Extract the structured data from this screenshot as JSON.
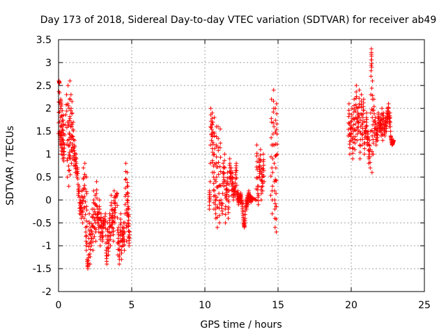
{
  "chart_data": {
    "type": "scatter",
    "title": "Day 173 of 2018, Sidereal Day-to-day VTEC variation (SDTVAR) for receiver ab49",
    "xlabel": "GPS time / hours",
    "ylabel": "SDTVAR / TECUs",
    "xlim": [
      0,
      25
    ],
    "ylim": [
      -2,
      3.5
    ],
    "xticks": [
      0,
      5,
      10,
      15,
      20,
      25
    ],
    "xtick_labels": [
      "0",
      "5",
      "10",
      "15",
      "20",
      "25"
    ],
    "yticks": [
      -2,
      -1.5,
      -1,
      -0.5,
      0,
      0.5,
      1,
      1.5,
      2,
      2.5,
      3,
      3.5
    ],
    "ytick_labels": [
      "-2",
      "-1.5",
      "-1",
      "-0.5",
      "0",
      "0.5",
      "1",
      "1.5",
      "2",
      "2.5",
      "3",
      "3.5"
    ],
    "grid": true,
    "marker": "+",
    "series": [
      {
        "name": "SDTVAR",
        "color": "#ff0000",
        "points": [
          [
            0.0,
            1.45
          ],
          [
            0.03,
            2.6
          ],
          [
            0.06,
            2.55
          ],
          [
            0.08,
            1.5
          ],
          [
            0.1,
            1.4
          ],
          [
            0.12,
            1.2
          ],
          [
            0.15,
            2.2
          ],
          [
            0.18,
            2.05
          ],
          [
            0.2,
            1.0
          ],
          [
            0.22,
            1.35
          ],
          [
            0.25,
            1.95
          ],
          [
            0.28,
            0.9
          ],
          [
            0.3,
            1.3
          ],
          [
            0.33,
            1.85
          ],
          [
            0.36,
            0.85
          ],
          [
            0.4,
            1.2
          ],
          [
            0.55,
            2.3
          ],
          [
            0.6,
            0.5
          ],
          [
            0.65,
            2.5
          ],
          [
            0.7,
            0.3
          ],
          [
            0.72,
            2.0
          ],
          [
            0.75,
            0.65
          ],
          [
            0.78,
            2.6
          ],
          [
            0.8,
            0.55
          ],
          [
            0.85,
            2.3
          ],
          [
            0.88,
            0.8
          ],
          [
            0.92,
            2.15
          ],
          [
            0.95,
            0.9
          ],
          [
            1.0,
            1.7
          ],
          [
            1.05,
            0.75
          ],
          [
            1.1,
            1.3
          ],
          [
            1.15,
            0.6
          ],
          [
            1.2,
            1.0
          ],
          [
            1.25,
            0.5
          ],
          [
            1.3,
            0.7
          ],
          [
            1.35,
            0.1
          ],
          [
            1.4,
            0.3
          ],
          [
            1.45,
            -0.3
          ],
          [
            1.5,
            0.0
          ],
          [
            1.55,
            -0.4
          ],
          [
            1.6,
            0.2
          ],
          [
            1.65,
            -0.5
          ],
          [
            1.7,
            0.7
          ],
          [
            1.75,
            -0.4
          ],
          [
            1.8,
            0.8
          ],
          [
            1.85,
            -0.6
          ],
          [
            1.9,
            -1.1
          ],
          [
            1.92,
            0.5
          ],
          [
            1.95,
            -1.3
          ],
          [
            2.0,
            -1.5
          ],
          [
            2.05,
            -1.2
          ],
          [
            2.1,
            -0.3
          ],
          [
            2.15,
            -1.4
          ],
          [
            2.2,
            -0.6
          ],
          [
            2.25,
            -1.0
          ],
          [
            2.3,
            -0.2
          ],
          [
            2.35,
            -1.1
          ],
          [
            2.4,
            0.2
          ],
          [
            2.45,
            -0.8
          ],
          [
            2.5,
            0.1
          ],
          [
            2.55,
            -0.9
          ],
          [
            2.6,
            0.4
          ],
          [
            2.65,
            -0.5
          ],
          [
            2.7,
            -0.2
          ],
          [
            2.75,
            -0.7
          ],
          [
            2.8,
            0.0
          ],
          [
            2.85,
            -1.0
          ],
          [
            2.9,
            -0.3
          ],
          [
            2.95,
            -0.7
          ],
          [
            3.0,
            -0.9
          ],
          [
            3.05,
            -0.4
          ],
          [
            3.1,
            -0.6
          ],
          [
            3.2,
            -0.3
          ],
          [
            3.25,
            -1.1
          ],
          [
            3.3,
            -1.4
          ],
          [
            3.35,
            -0.5
          ],
          [
            3.4,
            -1.2
          ],
          [
            3.45,
            -0.8
          ],
          [
            3.5,
            -0.3
          ],
          [
            3.55,
            -1.0
          ],
          [
            3.6,
            0.1
          ],
          [
            3.65,
            -0.7
          ],
          [
            3.7,
            -0.2
          ],
          [
            3.75,
            -0.9
          ],
          [
            3.8,
            0.2
          ],
          [
            3.85,
            -0.5
          ],
          [
            3.9,
            0.05
          ],
          [
            4.0,
            0.15
          ],
          [
            4.05,
            -1.2
          ],
          [
            4.1,
            -0.6
          ],
          [
            4.15,
            -1.4
          ],
          [
            4.2,
            -0.9
          ],
          [
            4.25,
            -0.3
          ],
          [
            4.3,
            -1.3
          ],
          [
            4.35,
            -0.6
          ],
          [
            4.4,
            -1.0
          ],
          [
            4.45,
            -0.5
          ],
          [
            4.5,
            -1.1
          ],
          [
            4.55,
            -0.1
          ],
          [
            4.6,
            0.8
          ],
          [
            4.65,
            -0.9
          ],
          [
            4.7,
            0.6
          ],
          [
            4.72,
            -0.5
          ],
          [
            4.75,
            0.3
          ],
          [
            4.78,
            -0.8
          ],
          [
            4.8,
            -0.2
          ],
          [
            4.82,
            -1.0
          ],
          [
            4.85,
            -0.7
          ],
          [
            10.3,
            -0.2
          ],
          [
            10.32,
            0.2
          ],
          [
            10.35,
            0.0
          ],
          [
            10.4,
            2.0
          ],
          [
            10.45,
            1.3
          ],
          [
            10.5,
            1.9
          ],
          [
            10.52,
            0.6
          ],
          [
            10.55,
            1.7
          ],
          [
            10.6,
            0.5
          ],
          [
            10.62,
            -0.2
          ],
          [
            10.65,
            1.8
          ],
          [
            10.7,
            0.1
          ],
          [
            10.75,
            -0.4
          ],
          [
            10.78,
            1.6
          ],
          [
            10.8,
            0.5
          ],
          [
            10.85,
            -0.6
          ],
          [
            10.9,
            1.6
          ],
          [
            10.95,
            0.3
          ],
          [
            11.0,
            -0.5
          ],
          [
            11.05,
            1.55
          ],
          [
            11.1,
            0.0
          ],
          [
            11.2,
            -0.3
          ],
          [
            11.25,
            0.8
          ],
          [
            11.3,
            0.3
          ],
          [
            11.35,
            1.0
          ],
          [
            11.4,
            -0.5
          ],
          [
            11.45,
            0.4
          ],
          [
            11.5,
            0.0
          ],
          [
            11.55,
            0.6
          ],
          [
            11.6,
            -0.4
          ],
          [
            11.65,
            0.2
          ],
          [
            11.7,
            0.9
          ],
          [
            11.75,
            0.4
          ],
          [
            11.8,
            0.7
          ],
          [
            11.85,
            0.1
          ],
          [
            11.9,
            0.6
          ],
          [
            11.95,
            0.0
          ],
          [
            12.0,
            0.3
          ],
          [
            12.05,
            0.1
          ],
          [
            12.1,
            0.55
          ],
          [
            12.15,
            0.8
          ],
          [
            12.2,
            0.0
          ],
          [
            12.25,
            0.2
          ],
          [
            12.3,
            -0.1
          ],
          [
            12.35,
            0.1
          ],
          [
            12.4,
            -0.05
          ],
          [
            12.45,
            0.15
          ],
          [
            12.5,
            0.0
          ],
          [
            12.55,
            -0.1
          ],
          [
            12.6,
            -0.3
          ],
          [
            12.65,
            -0.5
          ],
          [
            12.7,
            -0.6
          ],
          [
            12.75,
            -0.4
          ],
          [
            12.8,
            0.0
          ],
          [
            12.85,
            -0.2
          ],
          [
            12.9,
            0.1
          ],
          [
            12.95,
            -0.1
          ],
          [
            13.0,
            0.2
          ],
          [
            13.05,
            0.0
          ],
          [
            13.1,
            0.1
          ],
          [
            13.15,
            -0.05
          ],
          [
            13.2,
            0.05
          ],
          [
            13.5,
            0.0
          ],
          [
            13.55,
            1.2
          ],
          [
            13.6,
            0.3
          ],
          [
            13.65,
            -0.1
          ],
          [
            13.7,
            0.9
          ],
          [
            13.75,
            0.5
          ],
          [
            13.8,
            1.1
          ],
          [
            13.85,
            0.0
          ],
          [
            13.9,
            0.7
          ],
          [
            13.95,
            0.2
          ],
          [
            14.0,
            1.0
          ],
          [
            14.05,
            0.4
          ],
          [
            14.5,
            0.1
          ],
          [
            14.55,
            2.2
          ],
          [
            14.6,
            -0.3
          ],
          [
            14.65,
            1.2
          ],
          [
            14.7,
            2.4
          ],
          [
            14.75,
            0.4
          ],
          [
            14.8,
            -0.6
          ],
          [
            14.82,
            2.0
          ],
          [
            14.85,
            0.7
          ],
          [
            14.88,
            -0.7
          ],
          [
            14.9,
            2.1
          ],
          [
            14.95,
            1.0
          ],
          [
            19.8,
            1.4
          ],
          [
            19.85,
            2.1
          ],
          [
            19.9,
            1.0
          ],
          [
            19.95,
            1.7
          ],
          [
            20.0,
            1.3
          ],
          [
            20.05,
            2.0
          ],
          [
            20.1,
            0.9
          ],
          [
            20.15,
            1.5
          ],
          [
            20.2,
            2.2
          ],
          [
            20.25,
            1.1
          ],
          [
            20.3,
            1.8
          ],
          [
            20.35,
            2.5
          ],
          [
            20.4,
            1.3
          ],
          [
            20.45,
            2.0
          ],
          [
            20.5,
            1.5
          ],
          [
            20.55,
            2.4
          ],
          [
            20.6,
            0.9
          ],
          [
            20.65,
            1.6
          ],
          [
            20.7,
            2.3
          ],
          [
            20.75,
            1.2
          ],
          [
            20.8,
            1.8
          ],
          [
            20.85,
            2.2
          ],
          [
            20.9,
            1.0
          ],
          [
            20.95,
            1.6
          ],
          [
            21.0,
            1.4
          ],
          [
            21.05,
            1.9
          ],
          [
            21.1,
            1.2
          ],
          [
            21.15,
            1.5
          ],
          [
            21.2,
            0.8
          ],
          [
            21.25,
            1.3
          ],
          [
            21.3,
            0.7
          ],
          [
            21.35,
            2.7
          ],
          [
            21.38,
            3.3
          ],
          [
            21.4,
            2.9
          ],
          [
            21.42,
            0.6
          ],
          [
            21.45,
            2.6
          ],
          [
            21.5,
            1.0
          ],
          [
            21.55,
            2.2
          ],
          [
            21.6,
            1.4
          ],
          [
            21.65,
            1.8
          ],
          [
            21.7,
            1.2
          ],
          [
            21.75,
            1.6
          ],
          [
            21.8,
            1.3
          ],
          [
            21.85,
            1.9
          ],
          [
            21.9,
            1.7
          ],
          [
            21.95,
            1.5
          ],
          [
            22.0,
            1.8
          ],
          [
            22.05,
            1.4
          ],
          [
            22.1,
            2.0
          ],
          [
            22.15,
            1.3
          ],
          [
            22.2,
            1.9
          ],
          [
            22.25,
            1.6
          ],
          [
            22.3,
            1.4
          ],
          [
            22.35,
            1.8
          ],
          [
            22.4,
            1.5
          ],
          [
            22.45,
            2.0
          ],
          [
            22.5,
            1.7
          ],
          [
            22.55,
            2.1
          ],
          [
            22.6,
            1.6
          ],
          [
            22.65,
            1.9
          ],
          [
            22.7,
            1.4
          ],
          [
            22.75,
            1.3
          ],
          [
            22.8,
            1.2
          ],
          [
            22.85,
            1.25
          ],
          [
            22.9,
            1.3
          ]
        ]
      }
    ]
  }
}
